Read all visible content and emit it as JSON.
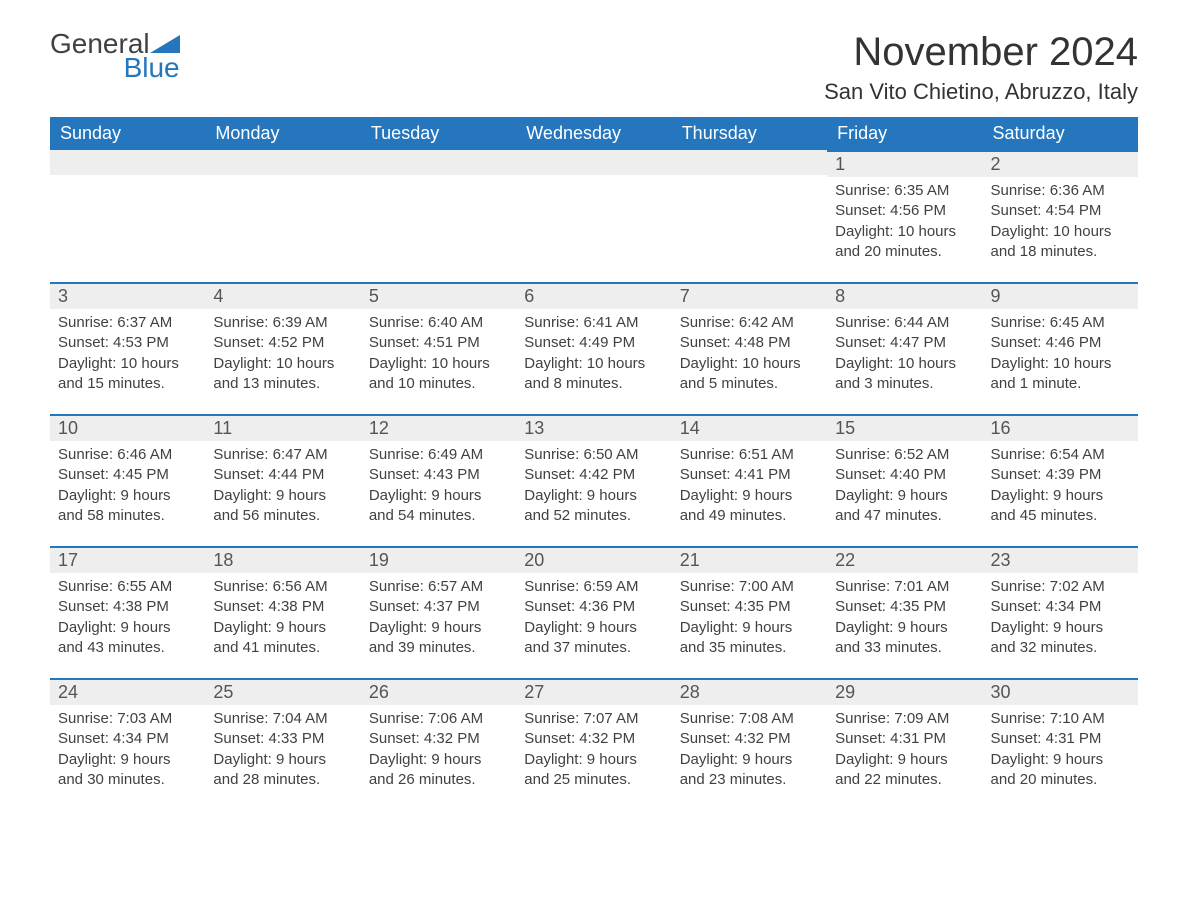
{
  "brand": {
    "general": "General",
    "blue": "Blue",
    "logo_color": "#2576bd"
  },
  "title": "November 2024",
  "location": "San Vito Chietino, Abruzzo, Italy",
  "colors": {
    "header_bg": "#2576bd",
    "header_text": "#ffffff",
    "daynum_bg": "#eeeeee",
    "daynum_border": "#2576bd",
    "body_text": "#414141",
    "page_bg": "#ffffff"
  },
  "typography": {
    "title_fontsize": 40,
    "location_fontsize": 22,
    "header_fontsize": 18,
    "daynum_fontsize": 18,
    "body_fontsize": 15
  },
  "weekdays": [
    "Sunday",
    "Monday",
    "Tuesday",
    "Wednesday",
    "Thursday",
    "Friday",
    "Saturday"
  ],
  "weeks": [
    [
      null,
      null,
      null,
      null,
      null,
      {
        "n": "1",
        "sunrise": "Sunrise: 6:35 AM",
        "sunset": "Sunset: 4:56 PM",
        "daylight": "Daylight: 10 hours and 20 minutes."
      },
      {
        "n": "2",
        "sunrise": "Sunrise: 6:36 AM",
        "sunset": "Sunset: 4:54 PM",
        "daylight": "Daylight: 10 hours and 18 minutes."
      }
    ],
    [
      {
        "n": "3",
        "sunrise": "Sunrise: 6:37 AM",
        "sunset": "Sunset: 4:53 PM",
        "daylight": "Daylight: 10 hours and 15 minutes."
      },
      {
        "n": "4",
        "sunrise": "Sunrise: 6:39 AM",
        "sunset": "Sunset: 4:52 PM",
        "daylight": "Daylight: 10 hours and 13 minutes."
      },
      {
        "n": "5",
        "sunrise": "Sunrise: 6:40 AM",
        "sunset": "Sunset: 4:51 PM",
        "daylight": "Daylight: 10 hours and 10 minutes."
      },
      {
        "n": "6",
        "sunrise": "Sunrise: 6:41 AM",
        "sunset": "Sunset: 4:49 PM",
        "daylight": "Daylight: 10 hours and 8 minutes."
      },
      {
        "n": "7",
        "sunrise": "Sunrise: 6:42 AM",
        "sunset": "Sunset: 4:48 PM",
        "daylight": "Daylight: 10 hours and 5 minutes."
      },
      {
        "n": "8",
        "sunrise": "Sunrise: 6:44 AM",
        "sunset": "Sunset: 4:47 PM",
        "daylight": "Daylight: 10 hours and 3 minutes."
      },
      {
        "n": "9",
        "sunrise": "Sunrise: 6:45 AM",
        "sunset": "Sunset: 4:46 PM",
        "daylight": "Daylight: 10 hours and 1 minute."
      }
    ],
    [
      {
        "n": "10",
        "sunrise": "Sunrise: 6:46 AM",
        "sunset": "Sunset: 4:45 PM",
        "daylight": "Daylight: 9 hours and 58 minutes."
      },
      {
        "n": "11",
        "sunrise": "Sunrise: 6:47 AM",
        "sunset": "Sunset: 4:44 PM",
        "daylight": "Daylight: 9 hours and 56 minutes."
      },
      {
        "n": "12",
        "sunrise": "Sunrise: 6:49 AM",
        "sunset": "Sunset: 4:43 PM",
        "daylight": "Daylight: 9 hours and 54 minutes."
      },
      {
        "n": "13",
        "sunrise": "Sunrise: 6:50 AM",
        "sunset": "Sunset: 4:42 PM",
        "daylight": "Daylight: 9 hours and 52 minutes."
      },
      {
        "n": "14",
        "sunrise": "Sunrise: 6:51 AM",
        "sunset": "Sunset: 4:41 PM",
        "daylight": "Daylight: 9 hours and 49 minutes."
      },
      {
        "n": "15",
        "sunrise": "Sunrise: 6:52 AM",
        "sunset": "Sunset: 4:40 PM",
        "daylight": "Daylight: 9 hours and 47 minutes."
      },
      {
        "n": "16",
        "sunrise": "Sunrise: 6:54 AM",
        "sunset": "Sunset: 4:39 PM",
        "daylight": "Daylight: 9 hours and 45 minutes."
      }
    ],
    [
      {
        "n": "17",
        "sunrise": "Sunrise: 6:55 AM",
        "sunset": "Sunset: 4:38 PM",
        "daylight": "Daylight: 9 hours and 43 minutes."
      },
      {
        "n": "18",
        "sunrise": "Sunrise: 6:56 AM",
        "sunset": "Sunset: 4:38 PM",
        "daylight": "Daylight: 9 hours and 41 minutes."
      },
      {
        "n": "19",
        "sunrise": "Sunrise: 6:57 AM",
        "sunset": "Sunset: 4:37 PM",
        "daylight": "Daylight: 9 hours and 39 minutes."
      },
      {
        "n": "20",
        "sunrise": "Sunrise: 6:59 AM",
        "sunset": "Sunset: 4:36 PM",
        "daylight": "Daylight: 9 hours and 37 minutes."
      },
      {
        "n": "21",
        "sunrise": "Sunrise: 7:00 AM",
        "sunset": "Sunset: 4:35 PM",
        "daylight": "Daylight: 9 hours and 35 minutes."
      },
      {
        "n": "22",
        "sunrise": "Sunrise: 7:01 AM",
        "sunset": "Sunset: 4:35 PM",
        "daylight": "Daylight: 9 hours and 33 minutes."
      },
      {
        "n": "23",
        "sunrise": "Sunrise: 7:02 AM",
        "sunset": "Sunset: 4:34 PM",
        "daylight": "Daylight: 9 hours and 32 minutes."
      }
    ],
    [
      {
        "n": "24",
        "sunrise": "Sunrise: 7:03 AM",
        "sunset": "Sunset: 4:34 PM",
        "daylight": "Daylight: 9 hours and 30 minutes."
      },
      {
        "n": "25",
        "sunrise": "Sunrise: 7:04 AM",
        "sunset": "Sunset: 4:33 PM",
        "daylight": "Daylight: 9 hours and 28 minutes."
      },
      {
        "n": "26",
        "sunrise": "Sunrise: 7:06 AM",
        "sunset": "Sunset: 4:32 PM",
        "daylight": "Daylight: 9 hours and 26 minutes."
      },
      {
        "n": "27",
        "sunrise": "Sunrise: 7:07 AM",
        "sunset": "Sunset: 4:32 PM",
        "daylight": "Daylight: 9 hours and 25 minutes."
      },
      {
        "n": "28",
        "sunrise": "Sunrise: 7:08 AM",
        "sunset": "Sunset: 4:32 PM",
        "daylight": "Daylight: 9 hours and 23 minutes."
      },
      {
        "n": "29",
        "sunrise": "Sunrise: 7:09 AM",
        "sunset": "Sunset: 4:31 PM",
        "daylight": "Daylight: 9 hours and 22 minutes."
      },
      {
        "n": "30",
        "sunrise": "Sunrise: 7:10 AM",
        "sunset": "Sunset: 4:31 PM",
        "daylight": "Daylight: 9 hours and 20 minutes."
      }
    ]
  ]
}
